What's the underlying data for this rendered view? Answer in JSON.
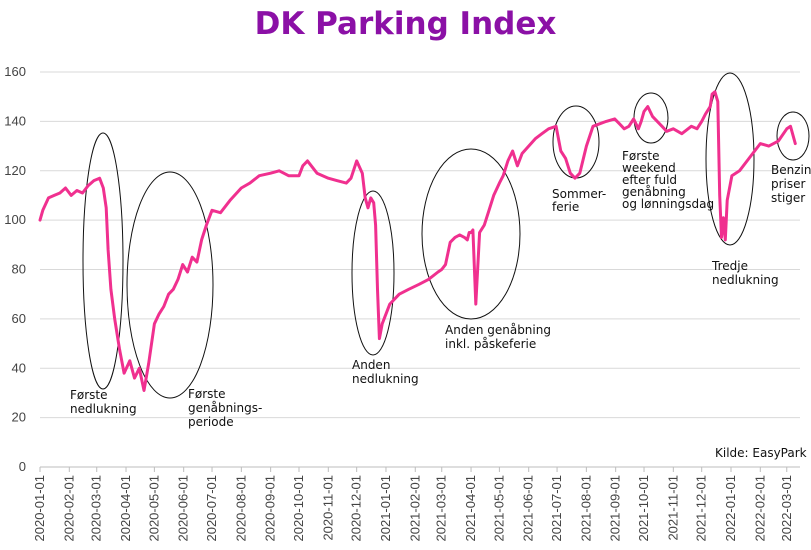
{
  "chart_data": {
    "type": "line",
    "title": "DK Parking Index",
    "source": "Kilde: EasyPark",
    "ylim": [
      0,
      160
    ],
    "yticks": [
      0,
      20,
      40,
      60,
      80,
      100,
      120,
      140,
      160
    ],
    "xlim": [
      "2020-01-01",
      "2022-03-15"
    ],
    "xticks": [
      "2020-01-01",
      "2020-02-01",
      "2020-03-01",
      "2020-04-01",
      "2020-05-01",
      "2020-06-01",
      "2020-07-01",
      "2020-08-01",
      "2020-09-01",
      "2020-10-01",
      "2020-11-01",
      "2020-12-01",
      "2021-01-01",
      "2021-02-01",
      "2021-03-01",
      "2021-04-01",
      "2021-05-01",
      "2021-06-01",
      "2021-07-01",
      "2021-08-01",
      "2021-09-01",
      "2021-10-01",
      "2021-11-01",
      "2021-12-01",
      "2022-01-01",
      "2022-02-01",
      "2022-03-01"
    ],
    "grid": "horizontal",
    "line_color": "#f0308f",
    "series": [
      {
        "x": [
          "2020-01-01",
          "2020-01-04",
          "2020-01-10",
          "2020-01-16",
          "2020-01-22",
          "2020-01-28",
          "2020-02-03",
          "2020-02-09",
          "2020-02-15",
          "2020-02-21",
          "2020-02-27",
          "2020-03-04",
          "2020-03-08",
          "2020-03-11",
          "2020-03-13",
          "2020-03-16",
          "2020-03-20",
          "2020-03-25",
          "2020-03-30",
          "2020-04-05",
          "2020-04-10",
          "2020-04-15",
          "2020-04-20",
          "2020-04-25",
          "2020-05-01",
          "2020-05-06",
          "2020-05-11",
          "2020-05-16",
          "2020-05-21",
          "2020-05-26",
          "2020-05-31",
          "2020-06-05",
          "2020-06-10",
          "2020-06-15",
          "2020-06-20",
          "2020-06-25",
          "2020-07-01",
          "2020-07-10",
          "2020-07-20",
          "2020-08-01",
          "2020-08-10",
          "2020-08-20",
          "2020-09-01",
          "2020-09-10",
          "2020-09-20",
          "2020-10-01",
          "2020-10-05",
          "2020-10-10",
          "2020-10-20",
          "2020-11-01",
          "2020-11-10",
          "2020-11-20",
          "2020-11-25",
          "2020-12-01",
          "2020-12-07",
          "2020-12-10",
          "2020-12-13",
          "2020-12-16",
          "2020-12-19",
          "2020-12-21",
          "2020-12-23",
          "2020-12-25",
          "2020-12-28",
          "2021-01-05",
          "2021-01-15",
          "2021-01-25",
          "2021-02-05",
          "2021-02-15",
          "2021-02-25",
          "2021-03-01",
          "2021-03-05",
          "2021-03-10",
          "2021-03-15",
          "2021-03-20",
          "2021-03-25",
          "2021-03-28",
          "2021-03-30",
          "2021-04-01",
          "2021-04-03",
          "2021-04-06",
          "2021-04-10",
          "2021-04-15",
          "2021-04-20",
          "2021-04-25",
          "2021-05-01",
          "2021-05-05",
          "2021-05-10",
          "2021-05-15",
          "2021-05-20",
          "2021-05-25",
          "2021-06-01",
          "2021-06-08",
          "2021-06-15",
          "2021-06-22",
          "2021-06-30",
          "2021-07-05",
          "2021-07-10",
          "2021-07-15",
          "2021-07-20",
          "2021-07-25",
          "2021-08-01",
          "2021-08-08",
          "2021-08-15",
          "2021-08-22",
          "2021-08-31",
          "2021-09-05",
          "2021-09-10",
          "2021-09-15",
          "2021-09-20",
          "2021-09-25",
          "2021-09-28",
          "2021-10-01",
          "2021-10-05",
          "2021-10-10",
          "2021-10-15",
          "2021-10-20",
          "2021-10-25",
          "2021-11-01",
          "2021-11-10",
          "2021-11-20",
          "2021-11-26",
          "2021-12-01",
          "2021-12-05",
          "2021-12-10",
          "2021-12-12",
          "2021-12-15",
          "2021-12-18",
          "2021-12-20",
          "2021-12-22",
          "2021-12-24",
          "2021-12-26",
          "2021-12-28",
          "2022-01-02",
          "2022-01-10",
          "2022-01-20",
          "2022-02-01",
          "2022-02-10",
          "2022-02-20",
          "2022-03-01",
          "2022-03-05",
          "2022-03-10"
        ],
        "y": [
          100,
          104,
          109,
          110,
          111,
          113,
          110,
          112,
          111,
          114,
          116,
          117,
          113,
          105,
          88,
          72,
          60,
          48,
          38,
          43,
          36,
          40,
          31,
          42,
          58,
          62,
          65,
          70,
          72,
          76,
          82,
          79,
          85,
          83,
          92,
          98,
          104,
          103,
          108,
          113,
          115,
          118,
          119,
          120,
          118,
          118,
          122,
          124,
          119,
          117,
          116,
          115,
          117,
          124,
          119,
          109,
          105,
          109,
          107,
          98,
          72,
          52,
          58,
          66,
          70,
          72,
          74,
          76,
          79,
          80,
          82,
          91,
          93,
          94,
          93,
          92,
          95,
          95,
          96,
          66,
          95,
          98,
          104,
          110,
          115,
          118,
          124,
          128,
          122,
          127,
          130,
          133,
          135,
          137,
          138,
          128,
          125,
          119,
          117,
          119,
          130,
          138,
          139,
          140,
          141,
          139,
          137,
          138,
          141,
          137,
          140,
          144,
          146,
          142,
          140,
          138,
          136,
          137,
          135,
          138,
          137,
          140,
          143,
          146,
          151,
          152,
          148,
          110,
          93,
          101,
          92,
          108,
          118,
          120,
          125,
          131,
          130,
          132,
          137,
          138,
          131
        ]
      }
    ],
    "annotations": [
      {
        "lines": [
          "Første",
          "nedlukning"
        ]
      },
      {
        "lines": [
          "Første",
          "genåbnings-",
          "periode"
        ]
      },
      {
        "lines": [
          "Anden",
          "nedlukning"
        ]
      },
      {
        "lines": [
          "Anden genåbning",
          "inkl. påskeferie"
        ]
      },
      {
        "lines": [
          "Sommer-",
          "ferie"
        ]
      },
      {
        "lines": [
          "Første",
          "weekend",
          "efter fuld",
          "genåbning",
          "og lønningsdag"
        ]
      },
      {
        "lines": [
          "Tredje",
          "nedlukning"
        ]
      },
      {
        "lines": [
          "Benzin-",
          "priser",
          "stiger"
        ]
      }
    ]
  }
}
